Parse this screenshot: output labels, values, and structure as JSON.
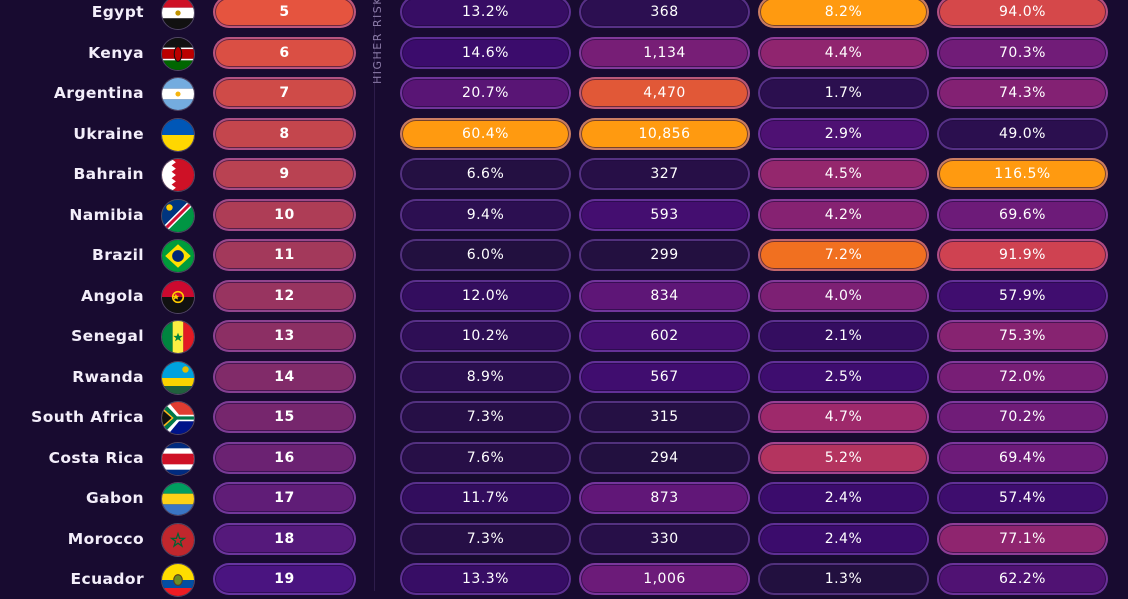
{
  "side_label": "HIGHER RISK",
  "chart_data": {
    "type": "table",
    "columns": [
      "country",
      "rank",
      "metric_1",
      "metric_2",
      "metric_3",
      "metric_4"
    ],
    "rows": [
      {
        "country": "Egypt",
        "flag": "egypt-flag-icon",
        "rank": "5",
        "m1": "13.2%",
        "m2": "368",
        "m3": "8.2%",
        "m4": "94.0%"
      },
      {
        "country": "Kenya",
        "flag": "kenya-flag-icon",
        "rank": "6",
        "m1": "14.6%",
        "m2": "1,134",
        "m3": "4.4%",
        "m4": "70.3%"
      },
      {
        "country": "Argentina",
        "flag": "argentina-flag-icon",
        "rank": "7",
        "m1": "20.7%",
        "m2": "4,470",
        "m3": "1.7%",
        "m4": "74.3%"
      },
      {
        "country": "Ukraine",
        "flag": "ukraine-flag-icon",
        "rank": "8",
        "m1": "60.4%",
        "m2": "10,856",
        "m3": "2.9%",
        "m4": "49.0%"
      },
      {
        "country": "Bahrain",
        "flag": "bahrain-flag-icon",
        "rank": "9",
        "m1": "6.6%",
        "m2": "327",
        "m3": "4.5%",
        "m4": "116.5%"
      },
      {
        "country": "Namibia",
        "flag": "namibia-flag-icon",
        "rank": "10",
        "m1": "9.4%",
        "m2": "593",
        "m3": "4.2%",
        "m4": "69.6%"
      },
      {
        "country": "Brazil",
        "flag": "brazil-flag-icon",
        "rank": "11",
        "m1": "6.0%",
        "m2": "299",
        "m3": "7.2%",
        "m4": "91.9%"
      },
      {
        "country": "Angola",
        "flag": "angola-flag-icon",
        "rank": "12",
        "m1": "12.0%",
        "m2": "834",
        "m3": "4.0%",
        "m4": "57.9%"
      },
      {
        "country": "Senegal",
        "flag": "senegal-flag-icon",
        "rank": "13",
        "m1": "10.2%",
        "m2": "602",
        "m3": "2.1%",
        "m4": "75.3%"
      },
      {
        "country": "Rwanda",
        "flag": "rwanda-flag-icon",
        "rank": "14",
        "m1": "8.9%",
        "m2": "567",
        "m3": "2.5%",
        "m4": "72.0%"
      },
      {
        "country": "South Africa",
        "flag": "south-africa-flag-icon",
        "rank": "15",
        "m1": "7.3%",
        "m2": "315",
        "m3": "4.7%",
        "m4": "70.2%"
      },
      {
        "country": "Costa Rica",
        "flag": "costa-rica-flag-icon",
        "rank": "16",
        "m1": "7.6%",
        "m2": "294",
        "m3": "5.2%",
        "m4": "69.4%"
      },
      {
        "country": "Gabon",
        "flag": "gabon-flag-icon",
        "rank": "17",
        "m1": "11.7%",
        "m2": "873",
        "m3": "2.4%",
        "m4": "57.4%"
      },
      {
        "country": "Morocco",
        "flag": "morocco-flag-icon",
        "rank": "18",
        "m1": "7.3%",
        "m2": "330",
        "m3": "2.4%",
        "m4": "77.1%"
      },
      {
        "country": "Ecuador",
        "flag": "ecuador-flag-icon",
        "rank": "19",
        "m1": "13.3%",
        "m2": "1,006",
        "m3": "1.3%",
        "m4": "62.2%"
      }
    ]
  },
  "colors": {
    "background": "#180b30",
    "rank_gradient": [
      "#e5543f",
      "#4a1480"
    ],
    "heat_scale": [
      "#22103f",
      "#3c0c6e",
      "#6a1a7a",
      "#a02a6a",
      "#d2444f",
      "#ef6a22",
      "#ff9a10"
    ]
  }
}
